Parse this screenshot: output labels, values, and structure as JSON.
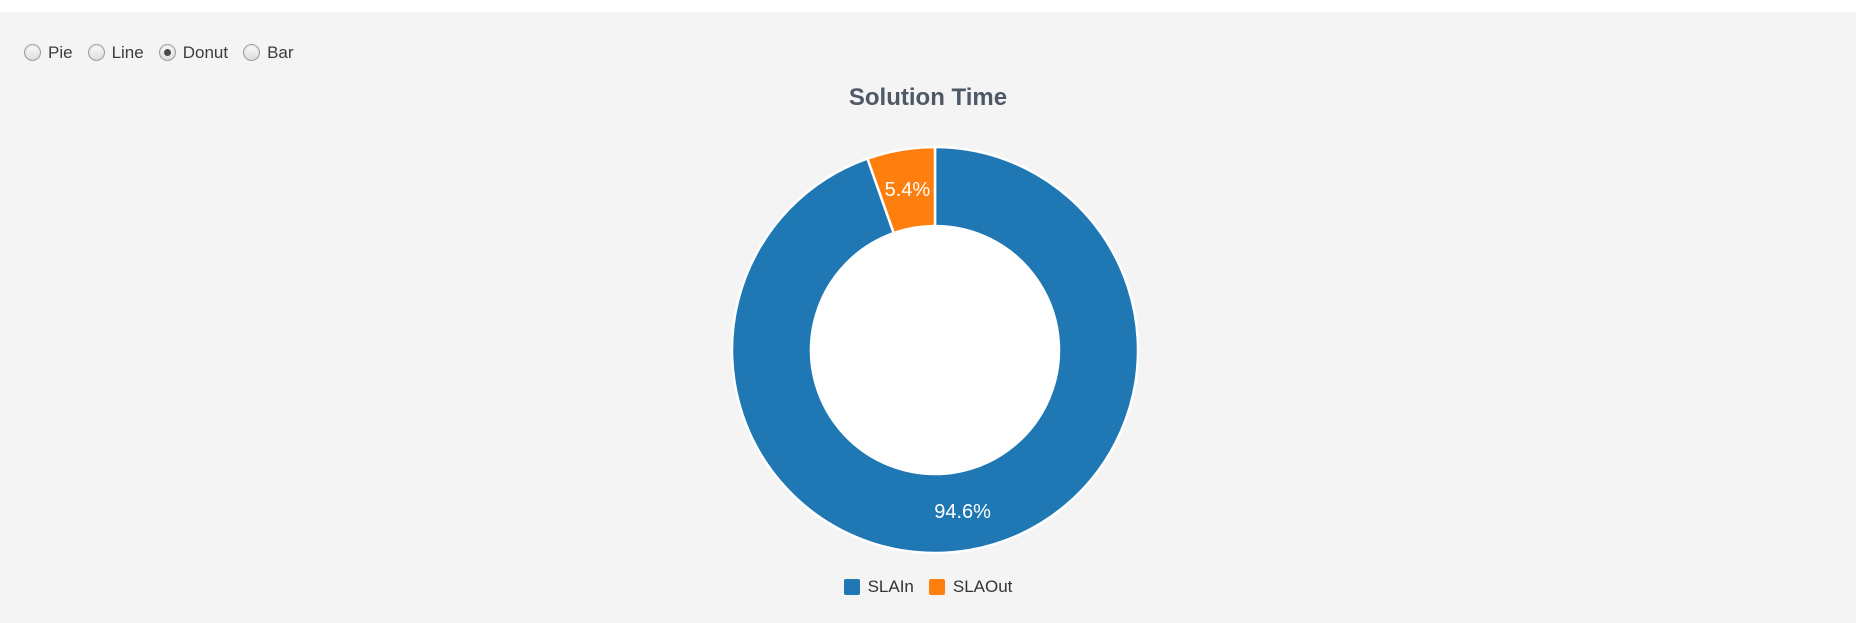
{
  "page": {
    "background": "#f4f4f4",
    "top_strip_color": "#ffffff"
  },
  "controls": {
    "type": "radio-group",
    "options": [
      {
        "label": "Pie",
        "selected": false
      },
      {
        "label": "Line",
        "selected": false
      },
      {
        "label": "Donut",
        "selected": true
      },
      {
        "label": "Bar",
        "selected": false
      }
    ]
  },
  "chart_data": {
    "type": "pie",
    "subtype": "donut",
    "title": "Solution Time",
    "labels": [
      "SLAIn",
      "SLAOut"
    ],
    "values": [
      94.6,
      5.4
    ],
    "data_labels": [
      "94.6%",
      "5.4%"
    ],
    "colors": [
      "#1f77b4",
      "#ff7f0e"
    ],
    "slice_border_color": "#ffffff",
    "hole_color": "#ffffff",
    "inner_radius_ratio": 0.61,
    "start_angle_deg": 0,
    "direction": "clockwise",
    "legend_position": "bottom",
    "title_color": "#4e5867",
    "data_label_color": "#ffffff"
  }
}
